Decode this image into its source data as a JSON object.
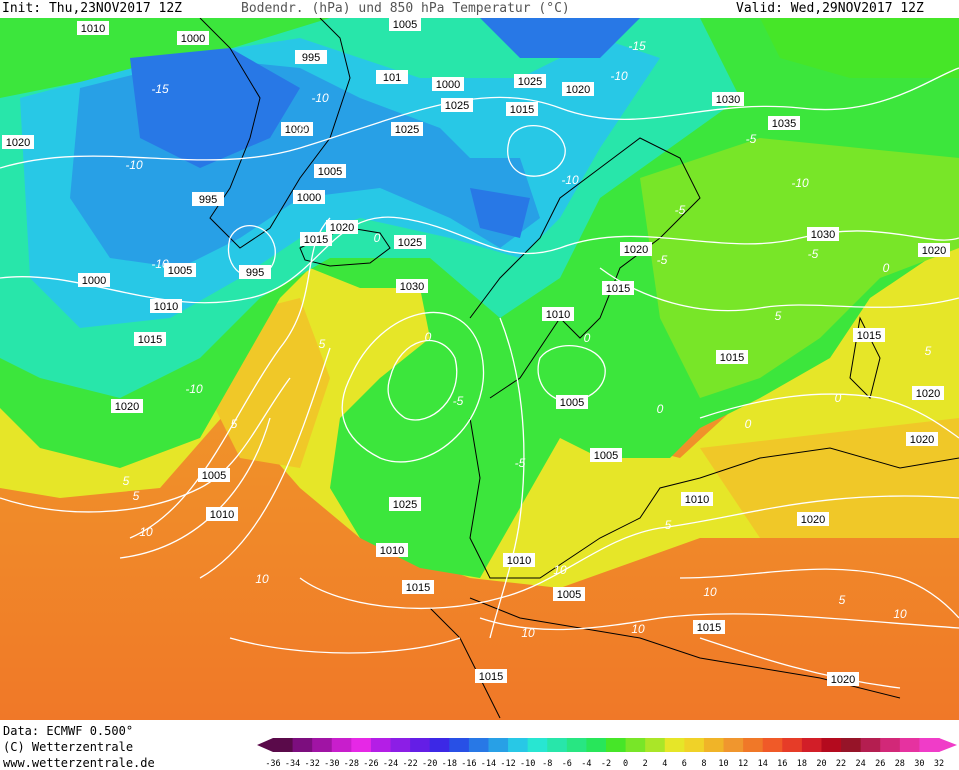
{
  "header": {
    "init_text": "Init: Thu,23NOV2017 12Z",
    "title_text": "Bodendr. (hPa) und 850 hPa Temperatur (°C)",
    "valid_text": "Valid: Wed,29NOV2017 12Z"
  },
  "footer": {
    "data_line": "Data: ECMWF  0.500°",
    "copyright_line": "(C) Wetterzentrale",
    "url_line": "www.wetterzentrale.de"
  },
  "colorbar": {
    "ticks": [
      "-36",
      "-34",
      "-32",
      "-30",
      "-28",
      "-26",
      "-24",
      "-22",
      "-20",
      "-18",
      "-16",
      "-14",
      "-12",
      "-10",
      "-8",
      "-6",
      "-4",
      "-2",
      "0",
      "2",
      "4",
      "6",
      "8",
      "10",
      "12",
      "14",
      "16",
      "18",
      "20",
      "22",
      "24",
      "26",
      "28",
      "30",
      "32"
    ],
    "colors": [
      "#5a0a4a",
      "#7c0e7e",
      "#a014a4",
      "#c81ecc",
      "#e628e6",
      "#b41ee6",
      "#8c1ee6",
      "#641ee6",
      "#3c28e6",
      "#2850e6",
      "#2878e6",
      "#28a0e6",
      "#28c8e6",
      "#28e6d2",
      "#28e6aa",
      "#28e682",
      "#28e65a",
      "#46e628",
      "#78e628",
      "#aae628",
      "#e6e628",
      "#f0d228",
      "#f0b428",
      "#f0962e",
      "#f07828",
      "#f05a28",
      "#e63c28",
      "#d21e28",
      "#b40a1e",
      "#961428",
      "#b41e50",
      "#d22878",
      "#e632a0",
      "#f03cc8"
    ]
  },
  "pressure_labels": [
    "1010",
    "1000",
    "995",
    "1005",
    "101",
    "1000",
    "1025",
    "1020",
    "1025",
    "1015",
    "1030",
    "1020",
    "1035",
    "995",
    "1000",
    "1005",
    "1025",
    "1000",
    "1015",
    "1020",
    "1030",
    "1025",
    "995",
    "1020",
    "1030",
    "1000",
    "1005",
    "1010",
    "1015",
    "1015",
    "1010",
    "1020",
    "1015",
    "1015",
    "1005",
    "1020",
    "1020",
    "1005",
    "1010",
    "1005",
    "1025",
    "1010",
    "1010",
    "1020",
    "1020",
    "1010",
    "1015",
    "1005",
    "1015",
    "1015",
    "1020"
  ],
  "temperature_labels": [
    "-15",
    "-15",
    "-10",
    "-10",
    "-10",
    "-5",
    "-10",
    "-5",
    "-5",
    "-10",
    "0",
    "-5",
    "0",
    "0",
    "0",
    "5",
    "5",
    "-5",
    "0",
    "-5",
    "-10",
    "5",
    "5",
    "5",
    "10",
    "5",
    "10",
    "10",
    "10",
    "10",
    "5",
    "10",
    "10",
    "5",
    "0",
    "0",
    "-5",
    "-10"
  ]
}
